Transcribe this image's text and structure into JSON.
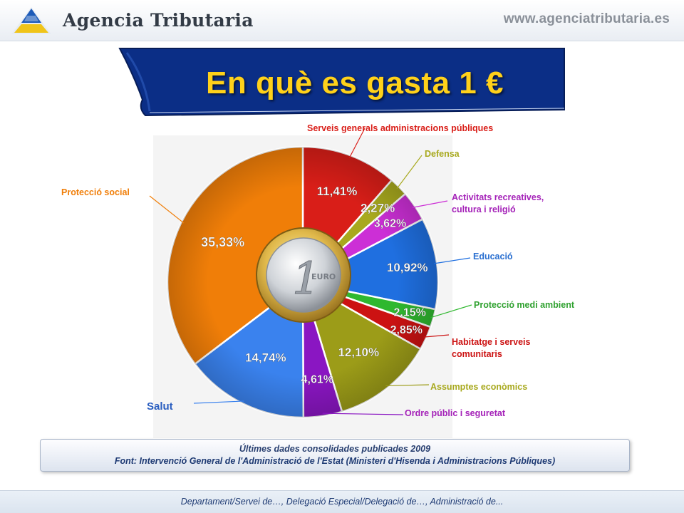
{
  "header": {
    "brand": "Agencia Tributaria",
    "url": "www.agenciatributaria.es",
    "logo_icon": "agencia-tributaria-logo-icon"
  },
  "title": "En què es gasta 1 €",
  "chart_data": {
    "type": "pie",
    "slices": [
      {
        "label": "Serveis generals administracions públiques",
        "value": 11.41,
        "value_label": "11,41%",
        "color": "#d91e18"
      },
      {
        "label": "Defensa",
        "value": 2.27,
        "value_label": "2,27%",
        "color": "#a8a91e"
      },
      {
        "label": "Activitats recreatives, cultura i religió",
        "value": 3.62,
        "value_label": "3,62%",
        "color": "#cc2fd6"
      },
      {
        "label": "Educació",
        "value": 10.92,
        "value_label": "10,92%",
        "color": "#1f6fe0"
      },
      {
        "label": "Protecció medi ambient",
        "value": 2.15,
        "value_label": "2,15%",
        "color": "#2fb82f"
      },
      {
        "label": "Habitatge i serveis comunitaris",
        "value": 2.85,
        "value_label": "2,85%",
        "color": "#cc1212"
      },
      {
        "label": "Assumptes econòmics",
        "value": 12.1,
        "value_label": "12,10%",
        "color": "#9c9c18"
      },
      {
        "label": "Ordre públic i seguretat",
        "value": 4.61,
        "value_label": "4,61%",
        "color": "#8a16c2"
      },
      {
        "label": "Salut",
        "value": 14.74,
        "value_label": "14,74%",
        "color": "#3a82ee"
      },
      {
        "label": "Protecció social",
        "value": 35.33,
        "value_label": "35,33%",
        "color": "#f07e08"
      }
    ],
    "start_angle_deg": 0,
    "direction": "clockwise",
    "center_image": "euro-coin"
  },
  "labels": {
    "serveis": "Serveis generals administracions públiques",
    "defensa": "Defensa",
    "activitats_1": "Activitats recreatives,",
    "activitats_2": "cultura i religió",
    "educacio": "Educació",
    "medi": "Protecció medi ambient",
    "habitatge_1": "Habitatge i serveis",
    "habitatge_2": "comunitaris",
    "assumptes": "Assumptes econòmics",
    "ordre": "Ordre públic i seguretat",
    "salut": "Salut",
    "proteccio": "Protecció social"
  },
  "label_colors": {
    "serveis": "#d91e18",
    "defensa": "#a8a91e",
    "activitats": "#a421b8",
    "educacio": "#2a6fd0",
    "medi": "#2fa12f",
    "habitatge": "#cc1212",
    "assumptes": "#a8a91e",
    "ordre": "#a421b8",
    "salut": "#2a5ec0",
    "proteccio": "#f07e08"
  },
  "note": {
    "line1": "Últimes dades consolidades publicades 2009",
    "line2": "Font: Intervenció General de l'Administració de l'Estat (Ministeri d'Hisenda i Administracions Públiques)"
  },
  "footer": "Departament/Servei de…, Delegació Especial/Delegació de…, Administració de..."
}
